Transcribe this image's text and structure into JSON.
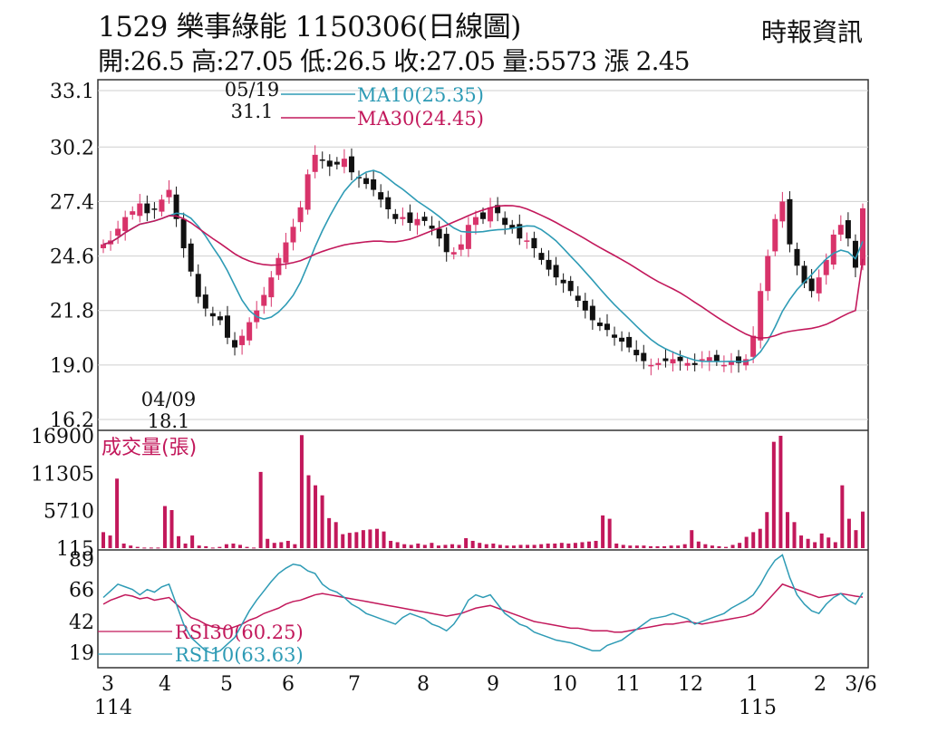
{
  "header": {
    "title": "1529  樂事綠能 1150306(日線圖)",
    "ohlc": "開:26.5 高:27.05 低:26.5 收:27.05 量:5573 漲 2.45",
    "source": "時報資訊"
  },
  "chart_data": {
    "type": "candlestick",
    "price_panel": {
      "yticks": [
        "33.1",
        "30.2",
        "27.4",
        "24.6",
        "21.8",
        "19.0",
        "16.2"
      ],
      "ylim": [
        16.2,
        33.1
      ],
      "grid": true,
      "legend": [
        {
          "label": "MA10(25.35)",
          "color": "#2e9bb5"
        },
        {
          "label": "MA30(24.45)",
          "color": "#c2185b"
        }
      ],
      "annotations": [
        {
          "date": "05/19",
          "value": "31.1",
          "type": "high"
        },
        {
          "date": "04/09",
          "value": "18.1",
          "type": "low"
        }
      ],
      "close_series": [
        25.2,
        25.4,
        26.0,
        26.6,
        26.9,
        27.3,
        26.8,
        27.0,
        27.5,
        28.0,
        26.5,
        25.0,
        23.8,
        22.5,
        21.9,
        21.5,
        21.3,
        20.4,
        19.9,
        20.5,
        21.2,
        21.8,
        22.6,
        23.5,
        24.5,
        25.3,
        26.1,
        27.1,
        28.8,
        29.8,
        29.5,
        29.2,
        29.3,
        29.6,
        28.9,
        28.6,
        28.3,
        28.0,
        27.5,
        27.0,
        26.5,
        26.6,
        26.3,
        26.5,
        26.4,
        26.0,
        25.5,
        24.8,
        24.8,
        25.2,
        26.2,
        26.6,
        26.5,
        27.1,
        26.8,
        26.2,
        26.0,
        25.5,
        25.4,
        25.0,
        24.4,
        23.9,
        23.5,
        23.2,
        22.8,
        22.3,
        21.8,
        21.3,
        21.0,
        20.8,
        20.4,
        20.2,
        19.9,
        19.5,
        19.2,
        19.0,
        19.1,
        19.2,
        19.3,
        19.2,
        19.1,
        19.0,
        19.3,
        19.4,
        19.2,
        19.0,
        19.2,
        19.1,
        19.3,
        20.5,
        22.8,
        24.6,
        26.5,
        27.4,
        25.2,
        24.1,
        23.2,
        22.8,
        23.5,
        24.4,
        25.7,
        26.2,
        25.5,
        24.0,
        27.05
      ],
      "ma10_last": 25.35,
      "ma30_last": 24.45
    },
    "volume_panel": {
      "label": "成交量(張)",
      "yticks": [
        "16900",
        "11305",
        "5710",
        "115"
      ],
      "ylim": [
        115,
        16900
      ],
      "values": [
        2500,
        2000,
        10500,
        800,
        500,
        300,
        200,
        200,
        200,
        6400,
        5800,
        1900,
        800,
        2000,
        500,
        400,
        200,
        300,
        700,
        800,
        600,
        300,
        200,
        11500,
        1500,
        900,
        1000,
        1200,
        700,
        17000,
        11000,
        9500,
        8000,
        4600,
        4000,
        2200,
        2400,
        2500,
        2800,
        2900,
        3000,
        2600,
        1200,
        1000,
        700,
        600,
        800,
        600,
        900,
        500,
        600,
        700,
        600,
        1600,
        1200,
        900,
        700,
        800,
        600,
        500,
        500,
        600,
        600,
        600,
        700,
        800,
        800,
        900,
        800,
        900,
        1000,
        1100,
        1200,
        5000,
        4500,
        800,
        600,
        500,
        500,
        500,
        400,
        400,
        400,
        500,
        500,
        700,
        2800,
        1100,
        700,
        500,
        400,
        300,
        600,
        900,
        1800,
        2500,
        3000,
        5500,
        16000,
        16900,
        5500,
        4000,
        2000,
        1500,
        1000,
        2300,
        1700,
        1000,
        9500,
        4500,
        2800,
        5573
      ]
    },
    "rsi_panel": {
      "yticks": [
        "89",
        "66",
        "42",
        "19"
      ],
      "ylim": [
        10,
        93
      ],
      "series": [
        {
          "name": "RSI30(60.25)",
          "color": "#c2185b",
          "values": [
            55,
            58,
            60,
            62,
            61,
            59,
            60,
            58,
            59,
            60,
            55,
            50,
            45,
            43,
            40,
            38,
            37,
            36,
            38,
            40,
            43,
            45,
            48,
            50,
            52,
            55,
            57,
            58,
            60,
            62,
            63,
            62,
            61,
            60,
            59,
            58,
            57,
            56,
            55,
            54,
            53,
            52,
            51,
            50,
            49,
            48,
            47,
            46,
            47,
            48,
            50,
            52,
            53,
            54,
            52,
            50,
            48,
            46,
            44,
            42,
            41,
            40,
            39,
            38,
            37,
            37,
            36,
            35,
            35,
            35,
            34,
            34,
            35,
            36,
            37,
            38,
            39,
            40,
            40,
            41,
            42,
            41,
            40,
            41,
            42,
            43,
            44,
            45,
            46,
            48,
            52,
            58,
            64,
            70,
            68,
            66,
            64,
            62,
            60,
            61,
            62,
            63,
            62,
            61,
            60.25
          ]
        },
        {
          "name": "RSI10(63.63)",
          "color": "#2e9bb5",
          "values": [
            60,
            65,
            70,
            68,
            66,
            62,
            66,
            64,
            68,
            70,
            55,
            40,
            30,
            25,
            20,
            18,
            20,
            25,
            30,
            40,
            50,
            58,
            65,
            72,
            78,
            82,
            85,
            84,
            80,
            78,
            70,
            66,
            64,
            60,
            55,
            52,
            48,
            46,
            44,
            42,
            40,
            45,
            48,
            46,
            44,
            40,
            38,
            35,
            40,
            48,
            58,
            62,
            60,
            62,
            55,
            48,
            44,
            40,
            38,
            34,
            32,
            30,
            28,
            27,
            26,
            24,
            22,
            20,
            20,
            24,
            26,
            28,
            32,
            36,
            40,
            44,
            45,
            46,
            48,
            46,
            44,
            40,
            42,
            44,
            46,
            48,
            52,
            55,
            58,
            62,
            70,
            80,
            88,
            92,
            75,
            62,
            55,
            50,
            48,
            55,
            60,
            63,
            58,
            55,
            63.63
          ]
        }
      ]
    },
    "x_labels": [
      "3",
      "4",
      "5",
      "6",
      "7",
      "8",
      "9",
      "10",
      "11",
      "12",
      "1",
      "2",
      "3/6"
    ],
    "x_year_labels": [
      {
        "at": "3",
        "text": "114"
      },
      {
        "at": "1",
        "text": "115"
      }
    ]
  },
  "colors": {
    "up": "#d8336a",
    "down": "#111111",
    "volume": "#c2185b",
    "ma10": "#2e9bb5",
    "ma30": "#c2185b",
    "grid": "#cfcfcf",
    "frame": "#333333"
  }
}
